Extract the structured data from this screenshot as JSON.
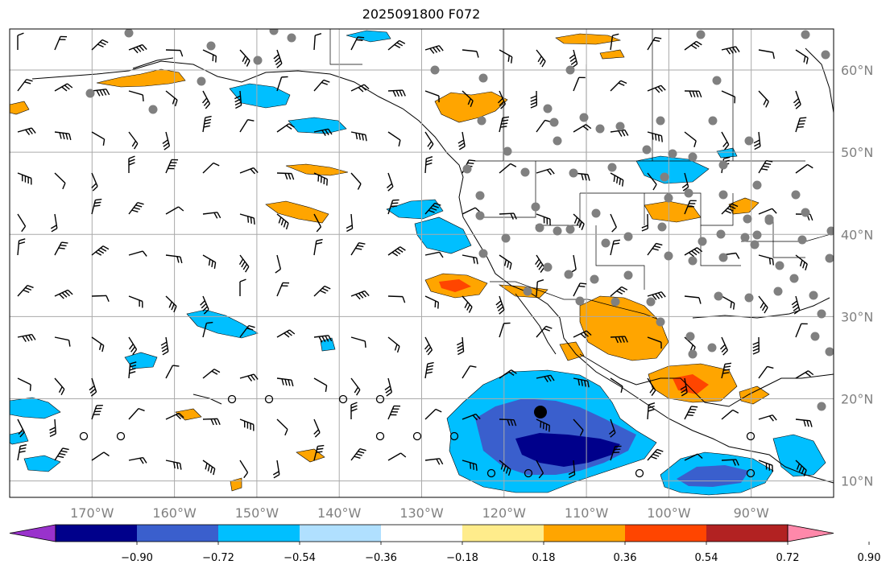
{
  "title": "2025091800 F072",
  "lat_labels": [
    "60°N",
    "50°N",
    "40°N",
    "30°N",
    "20°N",
    "10°N"
  ],
  "lat_values": [
    60,
    50,
    40,
    30,
    20,
    10
  ],
  "lon_labels": [
    "170°W",
    "160°W",
    "150°W",
    "140°W",
    "130°W",
    "120°W",
    "110°W",
    "100°W",
    "90°W"
  ],
  "lon_values": [
    -170,
    -160,
    -150,
    -140,
    -130,
    -120,
    -110,
    -100,
    -90
  ],
  "extent": {
    "lon_min": -180,
    "lon_max": -80,
    "lat_min": 8,
    "lat_max": 65
  },
  "colorbar": {
    "tick_labels": [
      "−0.90",
      "−0.72",
      "−0.54",
      "−0.36",
      "−0.18",
      "0.18",
      "0.36",
      "0.54",
      "0.72",
      "0.90"
    ],
    "colors": [
      "#9932cc",
      "#00008b",
      "#3a5fcd",
      "#00bfff",
      "#b0e0ff",
      "#ffffff",
      "#ffec8b",
      "#ffa500",
      "#ff4500",
      "#b22222",
      "#ff88aa"
    ]
  },
  "colors": {
    "axis_label": "#808080",
    "grid": "#aaaaaa",
    "station": "#808080",
    "coast": "#000000"
  }
}
